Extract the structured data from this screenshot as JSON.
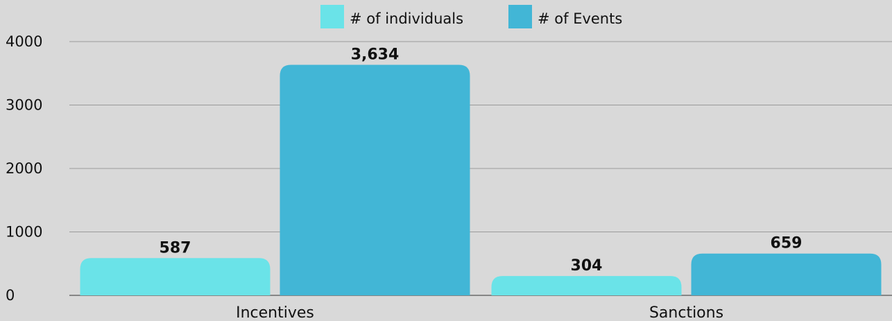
{
  "chart_data": {
    "type": "bar",
    "categories": [
      "Incentives",
      "Sanctions"
    ],
    "series": [
      {
        "name": "# of individuals",
        "values": [
          587,
          304
        ],
        "labels": [
          "587",
          "304"
        ],
        "color": "#6ae3e8"
      },
      {
        "name": "# of Events",
        "values": [
          3634,
          659
        ],
        "labels": [
          "3,634",
          "659"
        ],
        "color": "#42b6d6"
      }
    ],
    "ylim": [
      0,
      4000
    ],
    "yticks": [
      0,
      1000,
      2000,
      3000,
      4000
    ],
    "grid": true,
    "legend_position": "top-center",
    "background": "#d9d9d9"
  }
}
